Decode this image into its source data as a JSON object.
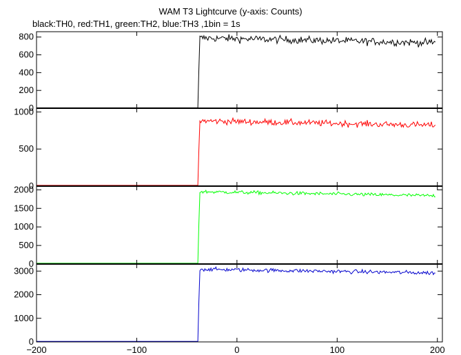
{
  "header": {
    "title": "WAM T3 Lightcurve (y-axis: Counts)",
    "subtitle": "black:TH0, red:TH1, green:TH2, blue:TH3 ,1bin = 1s"
  },
  "chart_data": {
    "type": "line",
    "title": "WAM T3 Lightcurve (y-axis: Counts)",
    "subtitle": "black:TH0, red:TH1, green:TH2, blue:TH3 ,1bin = 1s",
    "xlim": [
      -200,
      205
    ],
    "x_ticks": [
      -200,
      -100,
      0,
      100,
      200
    ],
    "x_tick_labels": [
      "−200",
      "−100",
      "0",
      "100",
      "200"
    ],
    "x_range_data": [
      -200,
      198
    ],
    "step_x": -38,
    "grid": false,
    "panels": [
      {
        "name": "TH0",
        "color": "#000000",
        "ylim": [
          0,
          860
        ],
        "y_ticks": [
          0,
          200,
          400,
          600,
          800
        ],
        "pre_level": 5,
        "post_start": 790,
        "post_end": 735,
        "noise": 35
      },
      {
        "name": "TH1",
        "color": "#ff0000",
        "ylim": [
          0,
          1050
        ],
        "y_ticks": [
          0,
          500,
          1000
        ],
        "pre_level": 10,
        "post_start": 880,
        "post_end": 820,
        "noise": 35
      },
      {
        "name": "TH2",
        "color": "#00ff00",
        "ylim": [
          0,
          2100
        ],
        "y_ticks": [
          0,
          500,
          1000,
          1500,
          2000
        ],
        "pre_level": 20,
        "post_start": 1950,
        "post_end": 1840,
        "noise": 40
      },
      {
        "name": "TH3",
        "color": "#0000cc",
        "ylim": [
          0,
          3300
        ],
        "y_ticks": [
          0,
          1000,
          2000,
          3000
        ],
        "pre_level": 20,
        "post_start": 3080,
        "post_end": 2920,
        "noise": 70
      }
    ]
  }
}
